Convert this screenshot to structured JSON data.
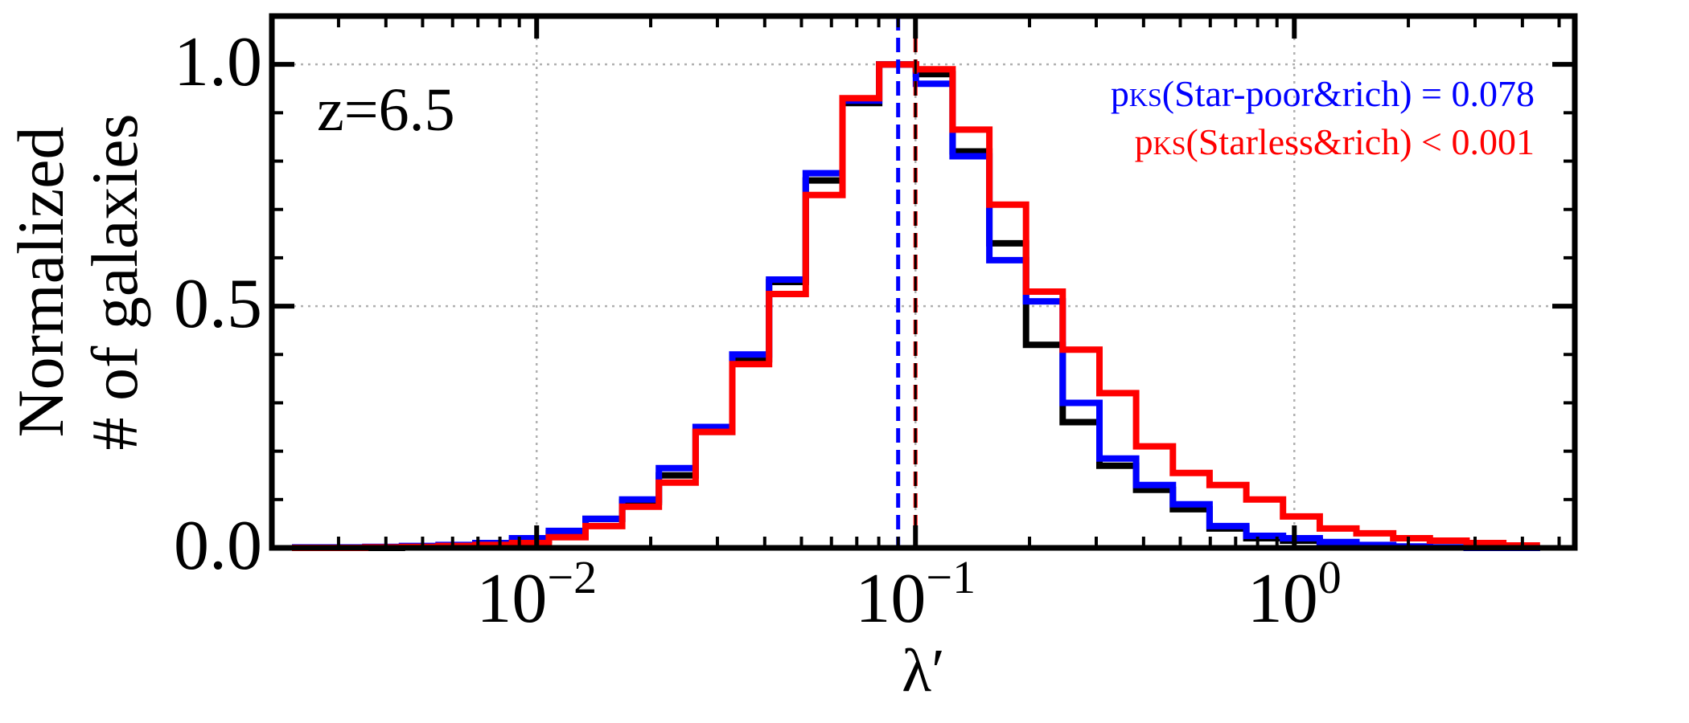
{
  "chart_data": {
    "type": "line",
    "subtype": "step-histogram",
    "xscale": "log",
    "xlim": [
      0.002,
      5.5
    ],
    "ylim": [
      0,
      1.1
    ],
    "grid": true,
    "xlabel": "λ′",
    "ylabel_lines": [
      "Normalized",
      "# of galaxies"
    ],
    "xticks": [
      {
        "value": 0.01,
        "base": "10",
        "exp": "−2"
      },
      {
        "value": 0.1,
        "base": "10",
        "exp": "−1"
      },
      {
        "value": 1,
        "base": "10",
        "exp": "0"
      }
    ],
    "yticks": [
      {
        "value": 0,
        "label": "0.0"
      },
      {
        "value": 0.5,
        "label": "0.5"
      },
      {
        "value": 1.0,
        "label": "1.0"
      }
    ],
    "panel_label": "z=6.5",
    "annotations": [
      {
        "prefix": "p",
        "sub": "KS",
        "text": "(Star-poor&rich) = 0.078",
        "color": "#0000ff"
      },
      {
        "prefix": "p",
        "sub": "KS",
        "text": "(Starless&rich) < 0.001",
        "color": "#ff0000"
      }
    ],
    "bin_edges": [
      0.00226,
      0.00282,
      0.00353,
      0.00441,
      0.00551,
      0.00689,
      0.00861,
      0.01077,
      0.01346,
      0.01682,
      0.02102,
      0.02628,
      0.03285,
      0.04106,
      0.05133,
      0.06416,
      0.0802,
      0.10025,
      0.12531,
      0.15664,
      0.1958,
      0.24475,
      0.30594,
      0.38243,
      0.47803,
      0.59754,
      0.74692,
      0.93365,
      1.16706,
      1.45883,
      1.82354,
      2.27942,
      2.84928,
      3.5616,
      4.452
    ],
    "series": [
      {
        "color": "#000000",
        "values": [
          0.0,
          0.0,
          0.0,
          0.002,
          0.004,
          0.008,
          0.016,
          0.03,
          0.06,
          0.095,
          0.15,
          0.24,
          0.39,
          0.55,
          0.76,
          0.92,
          1.0,
          0.98,
          0.82,
          0.63,
          0.42,
          0.26,
          0.17,
          0.12,
          0.08,
          0.04,
          0.02,
          0.015,
          0.008,
          0.004,
          0.002,
          0.001,
          0.0,
          0.0
        ]
      },
      {
        "color": "#0000ff",
        "values": [
          0.001,
          0.001,
          0.002,
          0.004,
          0.006,
          0.01,
          0.02,
          0.035,
          0.06,
          0.1,
          0.165,
          0.25,
          0.4,
          0.555,
          0.775,
          0.925,
          1.0,
          0.96,
          0.81,
          0.595,
          0.51,
          0.3,
          0.185,
          0.13,
          0.09,
          0.045,
          0.025,
          0.02,
          0.012,
          0.006,
          0.003,
          0.001,
          0.0,
          0.0
        ]
      },
      {
        "color": "#ff0000",
        "values": [
          0.0,
          0.0,
          0.001,
          0.002,
          0.004,
          0.006,
          0.01,
          0.022,
          0.045,
          0.085,
          0.135,
          0.24,
          0.38,
          0.525,
          0.73,
          0.93,
          1.0,
          0.99,
          0.865,
          0.71,
          0.53,
          0.41,
          0.32,
          0.21,
          0.155,
          0.13,
          0.1,
          0.065,
          0.04,
          0.03,
          0.02,
          0.015,
          0.01,
          0.005
        ]
      }
    ],
    "vlines": [
      {
        "x": 0.09,
        "color": "#0000ff",
        "style": "dashed"
      },
      {
        "x": 0.1,
        "color": "#ff0000",
        "style": "dashed"
      },
      {
        "x": 0.1,
        "color": "#000000",
        "style": "dashed"
      }
    ]
  }
}
